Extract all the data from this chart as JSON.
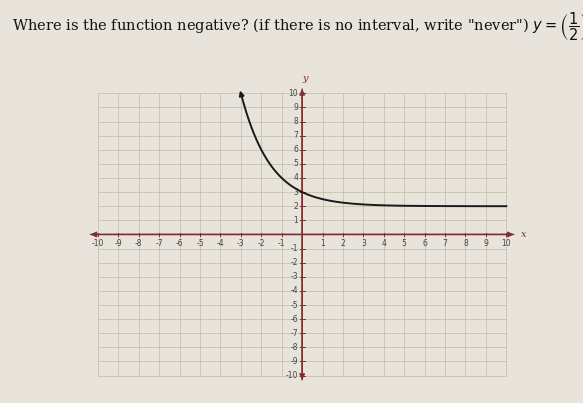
{
  "background_color": "#e8e4dc",
  "grid_color": "#b8b0a0",
  "axis_color": "#7a3030",
  "curve_color": "#1a1a1a",
  "xmin": -10,
  "xmax": 10,
  "ymin": -10,
  "ymax": 10,
  "curve_xmin": -3.0,
  "curve_xmax": 10.0,
  "linewidth": 1.4,
  "title_fontsize": 10.5,
  "tick_fontsize": 5.5
}
